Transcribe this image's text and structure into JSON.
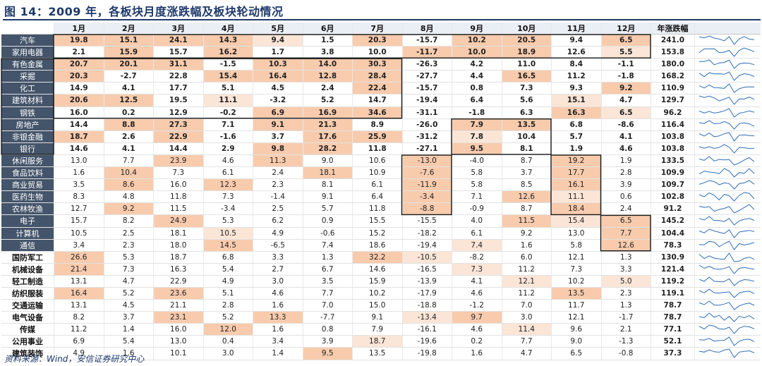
{
  "title": "图 14：2009 年，各板块月度涨跌幅及板块轮动情况",
  "source": "资料来源：Wind，安信证券研究中心",
  "months": [
    "1月",
    "2月",
    "3月",
    "4月",
    "5月",
    "6月",
    "7月",
    "8月",
    "9月",
    "10月",
    "11月",
    "12月"
  ],
  "year_header": "年涨跌幅",
  "colors": {
    "highlight_strong": "#f8cbad",
    "highlight_light": "#fbe5d6",
    "dark_label": "#44546a",
    "box": "#1a1a1a"
  },
  "rows": [
    {
      "name": "汽车",
      "label": "dark",
      "bold": true,
      "values": [
        "19.8",
        "15.1",
        "24.1",
        "14.3",
        "9.4",
        "1.5",
        "20.3",
        "-15.7",
        "10.2",
        "20.5",
        "9.4",
        "6.5"
      ],
      "year": "241.0",
      "hl": [
        1,
        1,
        1,
        1,
        2,
        0,
        1,
        0,
        1,
        1,
        0,
        1
      ]
    },
    {
      "name": "家用电器",
      "label": "dark",
      "bold": true,
      "values": [
        "2.1",
        "15.9",
        "15.7",
        "16.2",
        "1.7",
        "3.8",
        "10.0",
        "-11.7",
        "10.0",
        "18.9",
        "12.6",
        "5.5"
      ],
      "year": "153.8",
      "hl": [
        0,
        1,
        0,
        1,
        0,
        0,
        0,
        1,
        1,
        1,
        0,
        2
      ]
    },
    {
      "name": "有色金属",
      "label": "dark",
      "bold": true,
      "values": [
        "20.7",
        "20.1",
        "31.1",
        "-1.5",
        "10.3",
        "14.0",
        "30.3",
        "-26.3",
        "4.2",
        "11.0",
        "8.4",
        "-1.1"
      ],
      "year": "180.0",
      "hl": [
        1,
        1,
        1,
        0,
        1,
        1,
        1,
        0,
        0,
        0,
        0,
        0
      ]
    },
    {
      "name": "采掘",
      "label": "dark",
      "bold": true,
      "values": [
        "20.3",
        "-2.7",
        "22.8",
        "15.4",
        "16.4",
        "12.8",
        "28.4",
        "-27.7",
        "4.4",
        "16.5",
        "11.2",
        "-1.8"
      ],
      "year": "168.2",
      "hl": [
        1,
        0,
        0,
        1,
        1,
        1,
        1,
        0,
        0,
        1,
        0,
        0
      ]
    },
    {
      "name": "化工",
      "label": "dark",
      "bold": true,
      "values": [
        "14.9",
        "4.1",
        "17.7",
        "5.1",
        "4.5",
        "2.4",
        "22.4",
        "-15.7",
        "0.8",
        "7.3",
        "9.3",
        "9.2"
      ],
      "year": "110.9",
      "hl": [
        0,
        0,
        0,
        0,
        0,
        0,
        1,
        0,
        0,
        0,
        0,
        1
      ]
    },
    {
      "name": "建筑材料",
      "label": "dark",
      "bold": true,
      "values": [
        "20.6",
        "12.5",
        "19.5",
        "11.1",
        "-3.2",
        "5.2",
        "14.7",
        "-19.4",
        "6.4",
        "5.6",
        "15.1",
        "4.7"
      ],
      "year": "129.7",
      "hl": [
        1,
        1,
        0,
        2,
        0,
        0,
        0,
        0,
        0,
        0,
        2,
        0
      ]
    },
    {
      "name": "钢铁",
      "label": "dark",
      "bold": true,
      "values": [
        "16.0",
        "0.2",
        "12.9",
        "-0.2",
        "6.9",
        "16.9",
        "34.6",
        "-31.1",
        "-1.8",
        "6.3",
        "16.3",
        "6.5"
      ],
      "year": "96.2",
      "hl": [
        0,
        0,
        0,
        0,
        1,
        1,
        1,
        0,
        0,
        0,
        1,
        2
      ]
    },
    {
      "name": "房地产",
      "label": "dark",
      "bold": true,
      "values": [
        "14.4",
        "8.8",
        "27.3",
        "7.1",
        "9.1",
        "21.3",
        "8.9",
        "-26.0",
        "7.9",
        "13.5",
        "6.8",
        "-8.6"
      ],
      "year": "116.4",
      "hl": [
        0,
        1,
        1,
        0,
        1,
        1,
        0,
        0,
        1,
        1,
        0,
        0
      ]
    },
    {
      "name": "非银金融",
      "label": "dark",
      "bold": true,
      "values": [
        "18.7",
        "2.6",
        "22.9",
        "-1.6",
        "3.7",
        "17.6",
        "25.9",
        "-31.2",
        "7.8",
        "10.4",
        "5.7",
        "4.1"
      ],
      "year": "103.8",
      "hl": [
        1,
        0,
        1,
        0,
        0,
        1,
        1,
        0,
        2,
        0,
        0,
        0
      ]
    },
    {
      "name": "银行",
      "label": "dark",
      "bold": true,
      "values": [
        "14.6",
        "4.1",
        "14.4",
        "2.9",
        "9.8",
        "28.2",
        "11.8",
        "-27.1",
        "9.5",
        "8.1",
        "1.9",
        "4.6"
      ],
      "year": "103.8",
      "hl": [
        0,
        0,
        0,
        0,
        1,
        1,
        0,
        0,
        1,
        0,
        0,
        0
      ]
    },
    {
      "name": "休闲服务",
      "label": "dark",
      "bold": false,
      "values": [
        "13.0",
        "7.7",
        "23.9",
        "4.6",
        "11.3",
        "9.0",
        "10.6",
        "-13.0",
        "-4.0",
        "8.7",
        "19.2",
        "1.9"
      ],
      "year": "133.5",
      "hl": [
        0,
        0,
        1,
        0,
        1,
        0,
        0,
        1,
        0,
        0,
        1,
        0
      ]
    },
    {
      "name": "食品饮料",
      "label": "dark",
      "bold": false,
      "values": [
        "1.6",
        "10.4",
        "7.3",
        "6.1",
        "2.4",
        "18.1",
        "10.9",
        "-7.6",
        "5.8",
        "3.7",
        "17.7",
        "2.8"
      ],
      "year": "109.9",
      "hl": [
        0,
        1,
        0,
        0,
        0,
        1,
        0,
        1,
        0,
        0,
        1,
        0
      ]
    },
    {
      "name": "商业贸易",
      "label": "dark",
      "bold": false,
      "values": [
        "3.5",
        "8.6",
        "16.0",
        "12.3",
        "2.3",
        "8.1",
        "6.1",
        "-11.9",
        "5.8",
        "8.5",
        "16.1",
        "3.9"
      ],
      "year": "109.7",
      "hl": [
        0,
        1,
        0,
        1,
        0,
        0,
        0,
        1,
        0,
        0,
        1,
        0
      ]
    },
    {
      "name": "医药生物",
      "label": "dark",
      "bold": false,
      "values": [
        "8.3",
        "4.8",
        "11.8",
        "7.3",
        "-1.4",
        "9.1",
        "6.4",
        "-3.4",
        "7.1",
        "12.6",
        "11.1",
        "0.6"
      ],
      "year": "102.8",
      "hl": [
        0,
        0,
        0,
        0,
        0,
        0,
        0,
        1,
        0,
        1,
        2,
        0
      ]
    },
    {
      "name": "农林牧渔",
      "label": "dark",
      "bold": false,
      "values": [
        "12.7",
        "9.2",
        "11.5",
        "-3.4",
        "2.5",
        "5.7",
        "11.8",
        "-8.8",
        "-0.9",
        "8.7",
        "18.4",
        "2.4"
      ],
      "year": "91.2",
      "hl": [
        0,
        1,
        0,
        0,
        0,
        0,
        0,
        1,
        0,
        0,
        1,
        0
      ]
    },
    {
      "name": "电子",
      "label": "dark",
      "bold": false,
      "values": [
        "15.7",
        "8.2",
        "24.9",
        "5.3",
        "6.2",
        "0.9",
        "15.5",
        "-15.5",
        "4.0",
        "11.5",
        "15.4",
        "6.5"
      ],
      "year": "145.2",
      "hl": [
        0,
        0,
        1,
        0,
        0,
        0,
        0,
        0,
        0,
        1,
        2,
        1
      ]
    },
    {
      "name": "计算机",
      "label": "dark",
      "bold": false,
      "values": [
        "10.5",
        "2.5",
        "18.1",
        "10.5",
        "4.9",
        "-0.6",
        "15.2",
        "-18.2",
        "6.1",
        "9.2",
        "13.0",
        "7.7"
      ],
      "year": "104.4",
      "hl": [
        0,
        0,
        0,
        2,
        0,
        0,
        0,
        0,
        0,
        0,
        0,
        1
      ]
    },
    {
      "name": "通信",
      "label": "dark",
      "bold": false,
      "values": [
        "3.4",
        "2.3",
        "18.0",
        "14.5",
        "-6.5",
        "7.4",
        "18.6",
        "-19.4",
        "7.4",
        "1.6",
        "5.8",
        "12.6"
      ],
      "year": "78.3",
      "hl": [
        0,
        0,
        0,
        1,
        0,
        0,
        0,
        0,
        2,
        0,
        0,
        1
      ]
    },
    {
      "name": "国防军工",
      "label": "light",
      "bold": false,
      "values": [
        "26.6",
        "5.3",
        "18.7",
        "6.8",
        "3.3",
        "1.3",
        "32.2",
        "-10.5",
        "-8.2",
        "6.0",
        "12.1",
        "1.3"
      ],
      "year": "130.9",
      "hl": [
        1,
        0,
        0,
        0,
        0,
        0,
        1,
        2,
        0,
        0,
        0,
        0
      ]
    },
    {
      "name": "机械设备",
      "label": "light",
      "bold": false,
      "values": [
        "21.4",
        "7.3",
        "16.3",
        "5.4",
        "2.7",
        "6.7",
        "14.6",
        "-16.5",
        "7.3",
        "11.2",
        "7.3",
        "3.3"
      ],
      "year": "121.4",
      "hl": [
        1,
        0,
        0,
        0,
        0,
        0,
        0,
        0,
        2,
        0,
        0,
        0
      ]
    },
    {
      "name": "轻工制造",
      "label": "light",
      "bold": false,
      "values": [
        "13.1",
        "4.7",
        "22.9",
        "4.9",
        "3.0",
        "3.5",
        "15.9",
        "-13.9",
        "4.1",
        "12.1",
        "10.2",
        "5.0"
      ],
      "year": "119.2",
      "hl": [
        0,
        0,
        0,
        0,
        0,
        0,
        0,
        0,
        0,
        2,
        0,
        2
      ]
    },
    {
      "name": "纺织服装",
      "label": "light",
      "bold": false,
      "values": [
        "16.4",
        "5.2",
        "23.6",
        "5.1",
        "4.6",
        "7.7",
        "10.2",
        "-17.9",
        "4.6",
        "11.2",
        "13.5",
        "2.3"
      ],
      "year": "119.1",
      "hl": [
        1,
        0,
        1,
        0,
        0,
        0,
        0,
        0,
        0,
        0,
        1,
        0
      ]
    },
    {
      "name": "交通运输",
      "label": "light",
      "bold": false,
      "values": [
        "13.1",
        "4.5",
        "21.1",
        "2.8",
        "1.6",
        "7.0",
        "15.0",
        "-18.8",
        "-1.2",
        "7.0",
        "11.7",
        "1.3"
      ],
      "year": "78.7",
      "hl": [
        0,
        0,
        0,
        0,
        0,
        0,
        0,
        0,
        0,
        0,
        0,
        0
      ]
    },
    {
      "name": "电气设备",
      "label": "light",
      "bold": false,
      "values": [
        "8.2",
        "3.7",
        "23.1",
        "5.2",
        "13.3",
        "-7.7",
        "9.1",
        "-13.4",
        "9.7",
        "3.0",
        "12.1",
        "-1.7"
      ],
      "year": "78.7",
      "hl": [
        0,
        0,
        1,
        0,
        1,
        0,
        0,
        2,
        1,
        0,
        0,
        0
      ]
    },
    {
      "name": "传媒",
      "label": "light",
      "bold": false,
      "values": [
        "11.2",
        "1.4",
        "16.0",
        "12.0",
        "1.6",
        "0.8",
        "7.9",
        "-16.1",
        "4.6",
        "11.4",
        "9.6",
        "2.1"
      ],
      "year": "77.1",
      "hl": [
        0,
        0,
        0,
        1,
        0,
        0,
        0,
        0,
        0,
        2,
        0,
        0
      ]
    },
    {
      "name": "公用事业",
      "label": "light",
      "bold": false,
      "values": [
        "6.9",
        "5.4",
        "13.0",
        "0.4",
        "3.4",
        "3.9",
        "18.7",
        "-19.6",
        "0.2",
        "7.7",
        "9.0",
        "-1.3"
      ],
      "year": "52.1",
      "hl": [
        0,
        0,
        0,
        0,
        0,
        0,
        2,
        0,
        0,
        0,
        0,
        0
      ]
    },
    {
      "name": "建筑装饰",
      "label": "light",
      "bold": false,
      "values": [
        "4.9",
        "1.6",
        "10.1",
        "3.0",
        "1.4",
        "9.5",
        "13.5",
        "-19.8",
        "1.6",
        "4.7",
        "6.5",
        "-0.8"
      ],
      "year": "37.3",
      "hl": [
        0,
        0,
        0,
        0,
        0,
        1,
        0,
        0,
        0,
        0,
        0,
        0
      ]
    }
  ],
  "boxes": [
    {
      "row_start": 0,
      "row_end": 1,
      "col_start": 0,
      "col_end": 11
    },
    {
      "row_start": 2,
      "row_end": 6,
      "col_start": 0,
      "col_end": 6
    },
    {
      "row_start": 7,
      "row_end": 9,
      "col_start": 8,
      "col_end": 9
    },
    {
      "row_start": 10,
      "row_end": 14,
      "col_start": 7,
      "col_end": 7
    },
    {
      "row_start": 10,
      "row_end": 14,
      "col_start": 10,
      "col_end": 10
    },
    {
      "row_start": 15,
      "row_end": 17,
      "col_start": 11,
      "col_end": 11
    },
    {
      "row_start": 2,
      "row_end": 9,
      "col_start": -1,
      "col_end": -1
    }
  ]
}
